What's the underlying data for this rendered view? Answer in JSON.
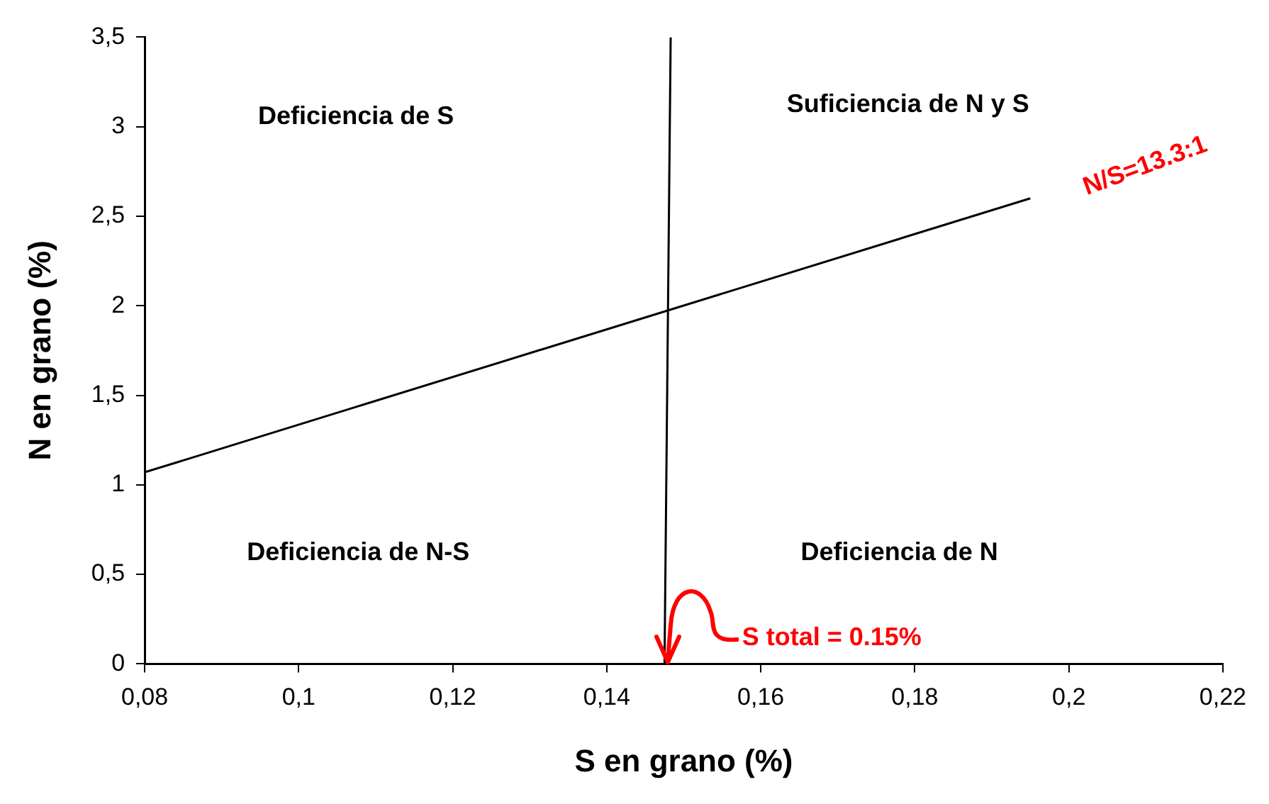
{
  "chart_data": {
    "type": "line",
    "xlabel": "S en grano (%)",
    "ylabel": "N en grano (%)",
    "xlim": [
      0.08,
      0.22
    ],
    "xticks": [
      {
        "value": 0.08,
        "label": "0,08"
      },
      {
        "value": 0.1,
        "label": "0,1"
      },
      {
        "value": 0.12,
        "label": "0,12"
      },
      {
        "value": 0.14,
        "label": "0,14"
      },
      {
        "value": 0.16,
        "label": "0,16"
      },
      {
        "value": 0.18,
        "label": "0,18"
      },
      {
        "value": 0.2,
        "label": "0,2"
      },
      {
        "value": 0.22,
        "label": "0,22"
      }
    ],
    "ylim": [
      0,
      3.5
    ],
    "yticks": [
      0,
      {
        "value": 0.5,
        "label": "0,5"
      },
      1,
      {
        "value": 1.5,
        "label": "1,5"
      },
      2,
      {
        "value": 2.5,
        "label": "2,5"
      },
      3,
      {
        "value": 3.5,
        "label": "3,5"
      }
    ],
    "series": [
      {
        "color": "#000000",
        "x": [
          0.08,
          0.195
        ],
        "values": [
          1.07,
          2.6
        ]
      },
      {
        "color": "#000000",
        "x": [
          0.1483,
          0.1475
        ],
        "values": [
          3.5,
          0
        ]
      }
    ],
    "annotations": [
      "Deficiencia de S",
      "Suficiencia de N y S",
      "Deficiencia de N-S",
      "Deficiencia de N",
      "N/S=13.3:1",
      {
        "text": "S total = 0.15%",
        "x": 0.148,
        "y": 0
      }
    ],
    "grid": false,
    "legend": false,
    "marker": "none",
    "line_style": "solid"
  }
}
